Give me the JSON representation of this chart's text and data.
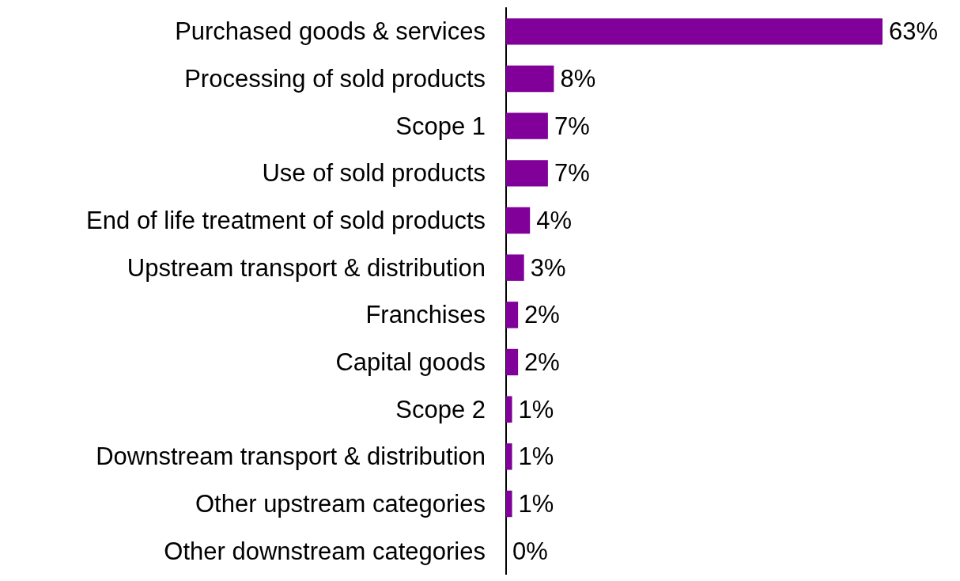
{
  "chart_data": {
    "type": "bar",
    "orientation": "horizontal",
    "categories": [
      "Purchased goods & services",
      "Processing of sold products",
      "Scope 1",
      "Use of sold products",
      "End of life treatment of sold products",
      "Upstream transport & distribution",
      "Franchises",
      "Capital goods",
      "Scope 2",
      "Downstream transport & distribution",
      "Other upstream categories",
      "Other downstream categories"
    ],
    "values": [
      63,
      8,
      7,
      7,
      4,
      3,
      2,
      2,
      1,
      1,
      1,
      0
    ],
    "value_labels": [
      "63%",
      "8%",
      "7%",
      "7%",
      "4%",
      "3%",
      "2%",
      "2%",
      "1%",
      "1%",
      "1%",
      "0%"
    ],
    "color": "#800099",
    "grid": false
  }
}
